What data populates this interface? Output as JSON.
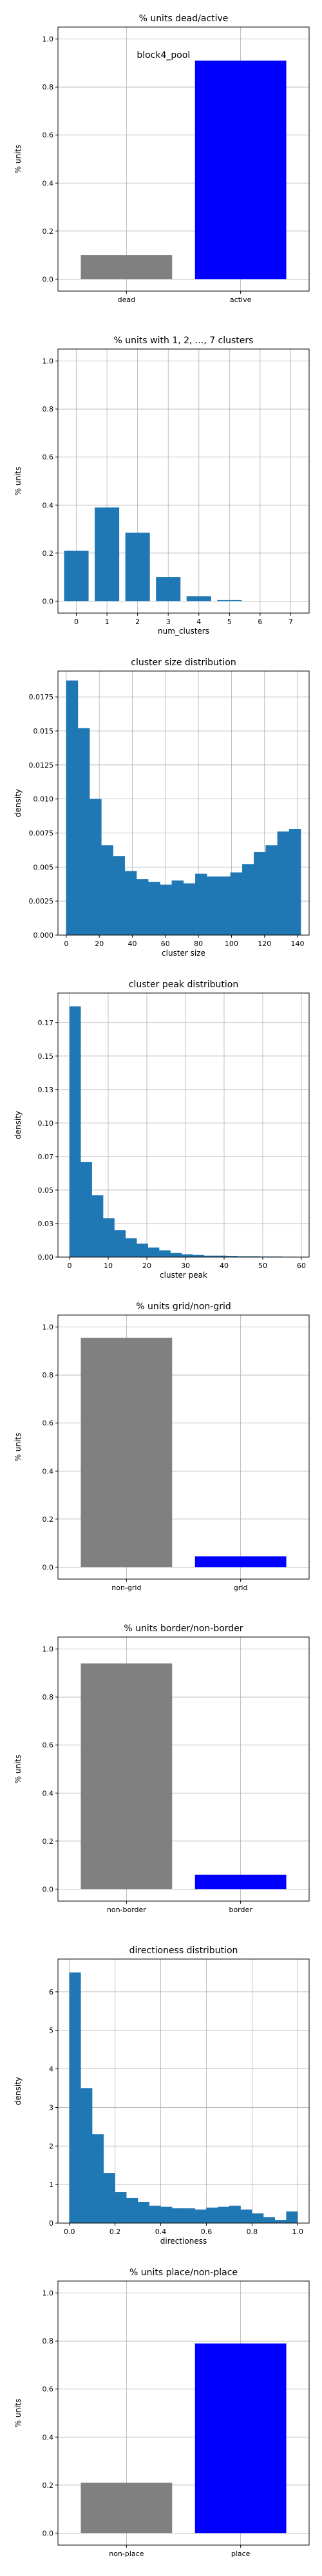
{
  "chart_data": [
    {
      "type": "bar",
      "title": "% units dead/active",
      "xlabel": "",
      "ylabel": "% units",
      "ylim": [
        -0.05,
        1.05
      ],
      "yticks": [
        0.0,
        0.2,
        0.4,
        0.6,
        0.8,
        1.0
      ],
      "categories": [
        "dead",
        "active"
      ],
      "values": [
        0.1,
        0.91
      ],
      "colors": [
        "#808080",
        "#0000ff"
      ],
      "annotation": "block4_pool",
      "grid": true
    },
    {
      "type": "bar",
      "title": "% units with 1, 2, ..., 7 clusters",
      "xlabel": "num_clusters",
      "ylabel": "% units",
      "ylim": [
        -0.05,
        1.05
      ],
      "yticks": [
        0.0,
        0.2,
        0.4,
        0.6,
        0.8,
        1.0
      ],
      "categories": [
        "0",
        "1",
        "2",
        "3",
        "4",
        "5",
        "6",
        "7"
      ],
      "values": [
        0.21,
        0.39,
        0.285,
        0.1,
        0.02,
        0.004,
        0.0,
        0.0
      ],
      "colors": [
        "#1f77b4"
      ],
      "grid": true
    },
    {
      "type": "bar",
      "title": "cluster size distribution",
      "xlabel": "cluster size",
      "ylabel": "density",
      "xlim": [
        -5,
        147
      ],
      "ylim": [
        0,
        0.0194
      ],
      "xticks": [
        0,
        20,
        40,
        60,
        80,
        100,
        120,
        140
      ],
      "yticks": [
        0.0,
        0.0025,
        0.005,
        0.0075,
        0.01,
        0.0125,
        0.015,
        0.0175
      ],
      "bin_edges": [
        0,
        7.1,
        14.2,
        21.3,
        28.4,
        35.5,
        42.6,
        49.7,
        56.8,
        63.9,
        71.0,
        78.1,
        85.2,
        92.3,
        99.4,
        106.5,
        113.6,
        120.7,
        127.8,
        134.9,
        142.0
      ],
      "values": [
        0.0187,
        0.0152,
        0.01,
        0.0066,
        0.0058,
        0.0047,
        0.0041,
        0.0039,
        0.0037,
        0.004,
        0.0038,
        0.0045,
        0.0043,
        0.0043,
        0.0046,
        0.0052,
        0.0061,
        0.0066,
        0.0076,
        0.0078
      ],
      "colors": [
        "#1f77b4"
      ],
      "grid": true
    },
    {
      "type": "bar",
      "title": "cluster peak distribution",
      "xlabel": "cluster peak",
      "ylabel": "density",
      "xlim": [
        -3,
        62
      ],
      "ylim": [
        0,
        0.197
      ],
      "xticks": [
        0,
        10,
        20,
        30,
        40,
        50,
        60
      ],
      "yticks": [
        0.0,
        0.025,
        0.05,
        0.075,
        0.1,
        0.125,
        0.15,
        0.175
      ],
      "bin_edges": [
        0,
        2.9,
        5.8,
        8.7,
        11.6,
        14.5,
        17.4,
        20.3,
        23.2,
        26.1,
        29.0,
        31.9,
        34.8,
        37.7,
        40.6,
        43.5,
        46.4,
        49.3,
        52.2,
        55.1,
        58.0
      ],
      "values": [
        0.187,
        0.071,
        0.046,
        0.029,
        0.02,
        0.014,
        0.01,
        0.007,
        0.005,
        0.003,
        0.002,
        0.0015,
        0.001,
        0.001,
        0.0008,
        0.0005,
        0.0005,
        0.0003,
        0.0003,
        0.0002
      ],
      "colors": [
        "#1f77b4"
      ],
      "grid": true
    },
    {
      "type": "bar",
      "title": "% units grid/non-grid",
      "xlabel": "",
      "ylabel": "% units",
      "ylim": [
        -0.05,
        1.05
      ],
      "yticks": [
        0.0,
        0.2,
        0.4,
        0.6,
        0.8,
        1.0
      ],
      "categories": [
        "non-grid",
        "grid"
      ],
      "values": [
        0.955,
        0.045
      ],
      "colors": [
        "#808080",
        "#0000ff"
      ],
      "grid": true
    },
    {
      "type": "bar",
      "title": "% units border/non-border",
      "xlabel": "",
      "ylabel": "% units",
      "ylim": [
        -0.05,
        1.05
      ],
      "yticks": [
        0.0,
        0.2,
        0.4,
        0.6,
        0.8,
        1.0
      ],
      "categories": [
        "non-border",
        "border"
      ],
      "values": [
        0.94,
        0.06
      ],
      "colors": [
        "#808080",
        "#0000ff"
      ],
      "grid": true
    },
    {
      "type": "bar",
      "title": "directioness distribution",
      "xlabel": "directioness",
      "ylabel": "density",
      "xlim": [
        -0.05,
        1.05
      ],
      "ylim": [
        0,
        6.85
      ],
      "xticks": [
        0.0,
        0.2,
        0.4,
        0.6,
        0.8,
        1.0
      ],
      "yticks": [
        0,
        1,
        2,
        3,
        4,
        5,
        6
      ],
      "bin_edges": [
        0.0,
        0.05,
        0.1,
        0.15,
        0.2,
        0.25,
        0.3,
        0.35,
        0.4,
        0.45,
        0.5,
        0.55,
        0.6,
        0.65,
        0.7,
        0.75,
        0.8,
        0.85,
        0.9,
        0.95,
        1.0
      ],
      "values": [
        6.5,
        3.5,
        2.3,
        1.3,
        0.8,
        0.65,
        0.55,
        0.45,
        0.42,
        0.38,
        0.38,
        0.35,
        0.4,
        0.42,
        0.45,
        0.35,
        0.25,
        0.15,
        0.08,
        0.3
      ],
      "colors": [
        "#1f77b4"
      ],
      "grid": true
    },
    {
      "type": "bar",
      "title": "% units place/non-place",
      "xlabel": "",
      "ylabel": "% units",
      "ylim": [
        -0.05,
        1.05
      ],
      "yticks": [
        0.0,
        0.2,
        0.4,
        0.6,
        0.8,
        1.0
      ],
      "categories": [
        "non-place",
        "place"
      ],
      "values": [
        0.21,
        0.79
      ],
      "colors": [
        "#808080",
        "#0000ff"
      ],
      "grid": true
    }
  ]
}
